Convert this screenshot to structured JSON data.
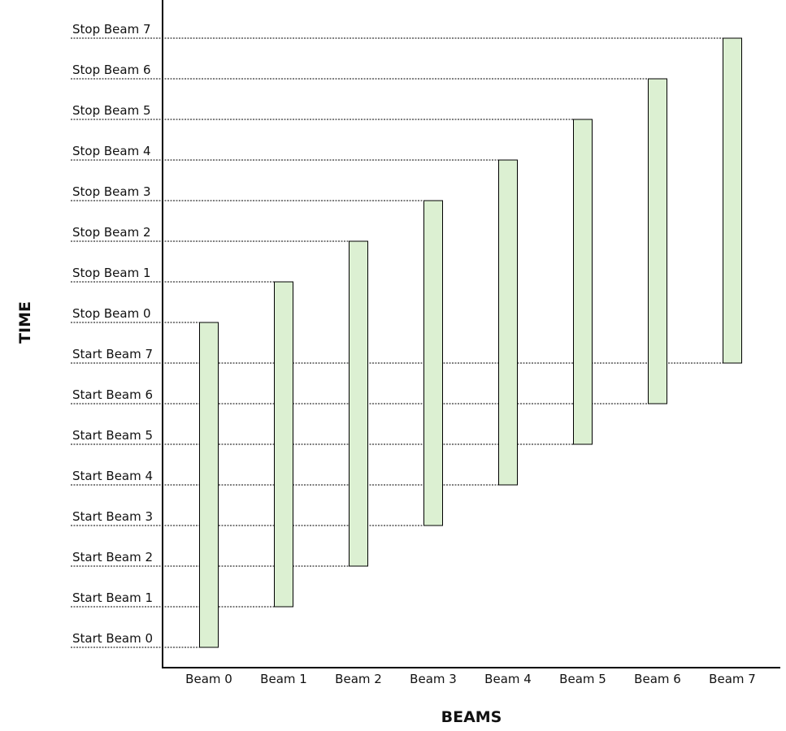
{
  "chart_data": {
    "type": "floating_bar",
    "x_label": "BEAMS",
    "y_label": "TIME",
    "categories": [
      "Beam 0",
      "Beam 1",
      "Beam 2",
      "Beam 3",
      "Beam 4",
      "Beam 5",
      "Beam 6",
      "Beam 7"
    ],
    "starts": [
      0,
      1,
      2,
      3,
      4,
      5,
      6,
      7
    ],
    "stops": [
      8,
      9,
      10,
      11,
      12,
      13,
      14,
      15
    ],
    "color": "#dcf0d2",
    "ylim": [
      -0.5,
      15.94
    ],
    "yticks": [
      {
        "value": 0,
        "label": "Start Beam 0"
      },
      {
        "value": 1,
        "label": "Start Beam 1"
      },
      {
        "value": 2,
        "label": "Start Beam 2"
      },
      {
        "value": 3,
        "label": "Start Beam 3"
      },
      {
        "value": 4,
        "label": "Start Beam 4"
      },
      {
        "value": 5,
        "label": "Start Beam 5"
      },
      {
        "value": 6,
        "label": "Start Beam 6"
      },
      {
        "value": 7,
        "label": "Start Beam 7"
      },
      {
        "value": 8,
        "label": "Stop Beam 0"
      },
      {
        "value": 9,
        "label": "Stop Beam 1"
      },
      {
        "value": 10,
        "label": "Stop Beam 2"
      },
      {
        "value": 11,
        "label": "Stop Beam 3"
      },
      {
        "value": 12,
        "label": "Stop Beam 4"
      },
      {
        "value": 13,
        "label": "Stop Beam 5"
      },
      {
        "value": 14,
        "label": "Stop Beam 6"
      },
      {
        "value": 15,
        "label": "Stop Beam 7"
      }
    ],
    "grid": true
  }
}
